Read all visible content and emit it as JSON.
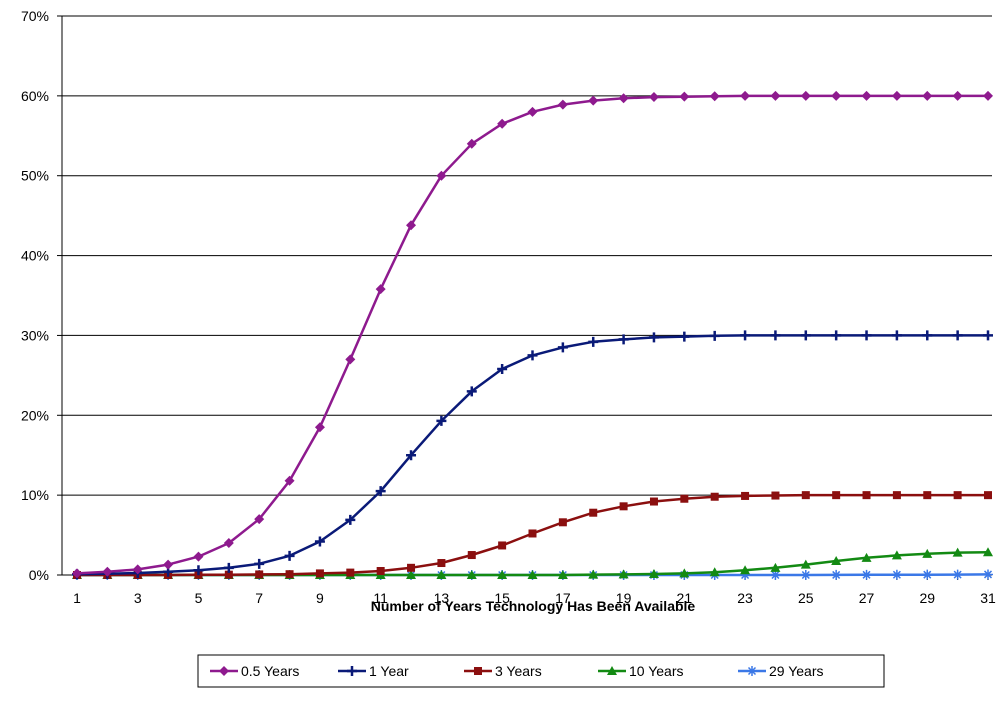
{
  "chart_data": {
    "type": "line",
    "title": "",
    "xlabel": "Number of Years Technology Has Been Available",
    "ylabel": "",
    "xlim": [
      1,
      31
    ],
    "ylim": [
      0,
      70
    ],
    "y_tick_labels": [
      "0%",
      "10%",
      "20%",
      "30%",
      "40%",
      "50%",
      "60%",
      "70%"
    ],
    "x_tick_labels": [
      "1",
      "3",
      "5",
      "7",
      "9",
      "11",
      "13",
      "15",
      "17",
      "19",
      "21",
      "23",
      "25",
      "27",
      "29",
      "31"
    ],
    "grid": "horizontal",
    "legend_position": "bottom",
    "x": [
      1,
      2,
      3,
      4,
      5,
      6,
      7,
      8,
      9,
      10,
      11,
      12,
      13,
      14,
      15,
      16,
      17,
      18,
      19,
      20,
      21,
      22,
      23,
      24,
      25,
      26,
      27,
      28,
      29,
      30,
      31
    ],
    "series": [
      {
        "name": "0.5 Years",
        "color": "#8e1a8e",
        "marker": "diamond",
        "values": [
          0.2,
          0.4,
          0.7,
          1.3,
          2.3,
          4.0,
          7.0,
          11.8,
          18.5,
          27.0,
          35.8,
          43.8,
          50.0,
          54.0,
          56.5,
          58.0,
          58.9,
          59.4,
          59.7,
          59.85,
          59.9,
          59.95,
          60,
          60,
          60,
          60,
          60,
          60,
          60,
          60,
          60
        ]
      },
      {
        "name": "1 Year",
        "color": "#0a1a78",
        "marker": "cross",
        "values": [
          0.1,
          0.15,
          0.25,
          0.4,
          0.6,
          0.9,
          1.4,
          2.4,
          4.2,
          6.9,
          10.5,
          15.0,
          19.3,
          23.0,
          25.8,
          27.5,
          28.5,
          29.2,
          29.5,
          29.75,
          29.85,
          29.95,
          30,
          30,
          30,
          30,
          30,
          30,
          30,
          30,
          30
        ]
      },
      {
        "name": "3 Years",
        "color": "#8b0f0f",
        "marker": "square",
        "values": [
          0,
          0,
          0,
          0,
          0.02,
          0.04,
          0.07,
          0.1,
          0.2,
          0.3,
          0.5,
          0.9,
          1.5,
          2.5,
          3.7,
          5.2,
          6.6,
          7.8,
          8.6,
          9.2,
          9.55,
          9.8,
          9.9,
          9.95,
          10,
          10,
          10,
          10,
          10,
          10,
          10
        ]
      },
      {
        "name": "10 Years",
        "color": "#138a13",
        "marker": "triangle",
        "values": [
          0,
          0,
          0,
          0,
          0,
          0,
          0,
          0,
          0,
          0,
          0,
          0,
          0,
          0,
          0,
          0,
          0,
          0.05,
          0.08,
          0.12,
          0.2,
          0.35,
          0.6,
          0.9,
          1.3,
          1.75,
          2.15,
          2.45,
          2.65,
          2.8,
          2.85
        ]
      },
      {
        "name": "29 Years",
        "color": "#3b78e7",
        "marker": "star",
        "values": [
          0,
          0,
          0,
          0,
          0,
          0,
          0,
          0,
          0,
          0,
          0,
          0,
          0,
          0,
          0,
          0,
          0,
          0,
          0,
          0,
          0,
          0,
          0,
          0,
          0,
          0.01,
          0.02,
          0.03,
          0.04,
          0.05,
          0.07
        ]
      }
    ]
  }
}
